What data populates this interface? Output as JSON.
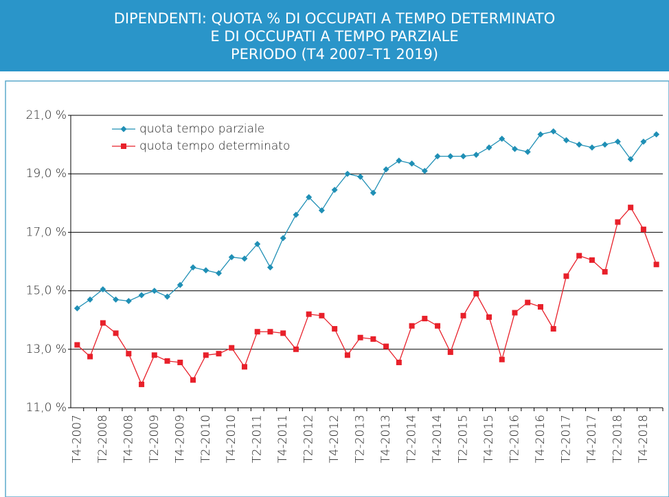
{
  "chart_data": {
    "type": "line",
    "title": [
      "DIPENDENTI: QUOTA % DI OCCUPATI A TEMPO DETERMINATO",
      "E DI OCCUPATI A TEMPO PARZIALE",
      "PERIODO (T4 2007–T1 2019)"
    ],
    "categories": [
      "T4-2007",
      null,
      "T2-2008",
      null,
      "T4-2008",
      null,
      "T2-2009",
      null,
      "T4-2009",
      null,
      "T2-2010",
      null,
      "T4-2010",
      null,
      "T2-2011",
      null,
      "T4-2011",
      null,
      "T2-2012",
      null,
      "T4-2012",
      null,
      "T2-2013",
      null,
      "T4-2013",
      null,
      "T2-2014",
      null,
      "T4-2014",
      null,
      "T2-2015",
      null,
      "T4-2015",
      null,
      "T2-2016",
      null,
      "T4-2016",
      null,
      "T2-2017",
      null,
      "T4-2017",
      null,
      "T2-2018",
      null,
      "T4-2018",
      null
    ],
    "series": [
      {
        "name": "quota tempo parziale",
        "color": "#1f8fb5",
        "marker": "diamond",
        "values": [
          14.4,
          14.7,
          15.05,
          14.7,
          14.65,
          14.85,
          15.0,
          14.8,
          15.2,
          15.8,
          15.7,
          15.6,
          16.15,
          16.1,
          16.6,
          15.8,
          16.8,
          17.6,
          18.2,
          17.75,
          18.45,
          19.0,
          18.9,
          18.35,
          19.15,
          19.45,
          19.35,
          19.1,
          19.6,
          19.6,
          19.6,
          19.65,
          19.9,
          20.2,
          19.85,
          19.75,
          20.35,
          20.45,
          20.15,
          20.0,
          19.9,
          20.0,
          20.1,
          19.5,
          20.1,
          20.35
        ]
      },
      {
        "name": "quota tempo determinato",
        "color": "#e8202a",
        "marker": "square",
        "values": [
          13.15,
          12.75,
          13.9,
          13.55,
          12.85,
          11.8,
          12.8,
          12.6,
          12.55,
          11.95,
          12.8,
          12.85,
          13.05,
          12.4,
          13.6,
          13.6,
          13.55,
          13.0,
          14.2,
          14.15,
          13.7,
          12.8,
          13.4,
          13.35,
          13.1,
          12.55,
          13.8,
          14.05,
          13.8,
          12.9,
          14.15,
          14.9,
          14.1,
          12.65,
          14.25,
          14.6,
          14.45,
          13.7,
          15.5,
          16.2,
          16.05,
          15.65,
          17.35,
          17.85,
          17.1,
          15.9
        ]
      }
    ],
    "ylim": [
      11,
      21
    ],
    "yticks": [
      {
        "value": 11,
        "label": "11,0 %"
      },
      {
        "value": 13,
        "label": "13,0 %"
      },
      {
        "value": 15,
        "label": "15,0 %"
      },
      {
        "value": 17,
        "label": "17,0 %"
      },
      {
        "value": 19,
        "label": "19,0 %"
      },
      {
        "value": 21,
        "label": "21,0 %"
      }
    ],
    "grid": true,
    "legend": "upper left"
  }
}
